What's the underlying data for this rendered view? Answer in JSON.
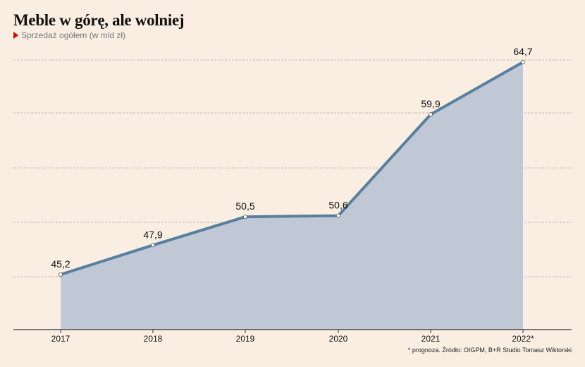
{
  "header": {
    "title": "Meble w górę, ale wolniej",
    "subtitle": "Sprzedaż ogółem (w mld zł)"
  },
  "footnote": "* prognoza. Źródło: OIGPM, B+R Studio Tomasz Wiktorski",
  "colors": {
    "background": "#faeee2",
    "area_fill": "#c0c7d5",
    "line": "#58809e",
    "grid": "#aaaaaa",
    "marker": "#e10000"
  },
  "chart_data": {
    "type": "area",
    "title": "Meble w górę, ale wolniej",
    "subtitle": "Sprzedaż ogółem (w mld zł)",
    "categories": [
      "2017",
      "2018",
      "2019",
      "2020",
      "2021",
      "2022*"
    ],
    "values": [
      45.2,
      47.9,
      50.5,
      50.6,
      59.9,
      64.7
    ],
    "value_labels": [
      "45,2",
      "47,9",
      "50,5",
      "50,6",
      "59,9",
      "64,7"
    ],
    "ylim": [
      37.5,
      65
    ],
    "gridlines": [
      45,
      52.5,
      57.5,
      60,
      65
    ],
    "grid": true,
    "legend": "none"
  }
}
